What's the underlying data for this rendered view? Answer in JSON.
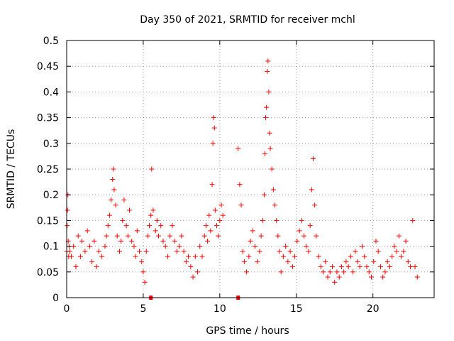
{
  "chart_data": {
    "type": "scatter",
    "title": "Day 350 of 2021, SRMTID for receiver mchl",
    "xlabel": "GPS time / hours",
    "ylabel": "SRMTID / TECUs",
    "xlim": [
      0,
      24
    ],
    "ylim": [
      0,
      0.5
    ],
    "xticks": [
      0,
      5,
      10,
      15,
      20
    ],
    "xtick_labels": [
      "0",
      "5",
      "10",
      "15",
      "20"
    ],
    "yticks": [
      0,
      0.05,
      0.1,
      0.15,
      0.2,
      0.25,
      0.3,
      0.35,
      0.4,
      0.45,
      0.5
    ],
    "ytick_labels": [
      "0",
      "0.05",
      "0.1",
      "0.15",
      "0.2",
      "0.25",
      "0.3",
      "0.35",
      "0.4",
      "0.45",
      "0.5"
    ],
    "grid": true,
    "marker": "+",
    "color": "#ff0000",
    "series": [
      {
        "name": "SRMTID",
        "x": [
          0.0,
          0.03,
          0.05,
          0.08,
          0.1,
          0.13,
          0.16,
          0.2,
          0.3,
          0.45,
          0.6,
          0.75,
          0.9,
          1.0,
          1.2,
          1.35,
          1.5,
          1.65,
          1.8,
          1.95,
          2.1,
          2.3,
          2.5,
          2.6,
          2.7,
          2.8,
          2.9,
          3.0,
          3.05,
          3.1,
          3.2,
          3.3,
          3.45,
          3.55,
          3.65,
          3.75,
          3.9,
          4.0,
          4.1,
          4.25,
          4.4,
          4.5,
          4.6,
          4.75,
          4.9,
          5.0,
          5.1,
          5.2,
          5.3,
          5.4,
          5.5,
          5.55,
          5.65,
          5.8,
          5.9,
          6.0,
          6.15,
          6.3,
          6.45,
          6.6,
          6.75,
          6.9,
          7.05,
          7.2,
          7.35,
          7.5,
          7.65,
          7.8,
          7.95,
          8.1,
          8.25,
          8.4,
          8.55,
          8.7,
          8.85,
          9.0,
          9.1,
          9.2,
          9.3,
          9.4,
          9.5,
          9.55,
          9.6,
          9.65,
          9.7,
          9.8,
          9.9,
          10.0,
          10.1,
          10.2,
          11.2,
          11.3,
          11.4,
          11.5,
          11.6,
          11.75,
          11.9,
          12.0,
          12.15,
          12.3,
          12.45,
          12.6,
          12.7,
          12.8,
          12.9,
          12.95,
          13.0,
          13.05,
          13.1,
          13.15,
          13.2,
          13.25,
          13.3,
          13.4,
          13.5,
          13.6,
          13.7,
          13.8,
          13.9,
          14.0,
          14.15,
          14.3,
          14.45,
          14.6,
          14.75,
          14.9,
          15.05,
          15.2,
          15.35,
          15.5,
          15.65,
          15.8,
          15.9,
          16.0,
          16.1,
          16.2,
          16.3,
          16.45,
          16.6,
          16.75,
          16.9,
          17.05,
          17.2,
          17.35,
          17.5,
          17.65,
          17.8,
          17.95,
          18.1,
          18.25,
          18.4,
          18.55,
          18.7,
          18.85,
          19.0,
          19.15,
          19.3,
          19.45,
          19.6,
          19.75,
          19.9,
          20.05,
          20.2,
          20.35,
          20.5,
          20.65,
          20.8,
          20.95,
          21.1,
          21.25,
          21.4,
          21.55,
          21.7,
          21.85,
          22.0,
          22.15,
          22.3,
          22.45,
          22.6,
          22.75,
          22.9
        ],
        "y": [
          0.09,
          0.14,
          0.17,
          0.2,
          0.11,
          0.08,
          0.1,
          0.09,
          0.08,
          0.1,
          0.06,
          0.12,
          0.08,
          0.11,
          0.09,
          0.13,
          0.1,
          0.07,
          0.11,
          0.06,
          0.09,
          0.08,
          0.1,
          0.12,
          0.14,
          0.16,
          0.19,
          0.23,
          0.25,
          0.21,
          0.18,
          0.12,
          0.09,
          0.11,
          0.15,
          0.19,
          0.14,
          0.12,
          0.17,
          0.11,
          0.1,
          0.08,
          0.13,
          0.09,
          0.07,
          0.05,
          0.03,
          0.09,
          0.12,
          0.14,
          0.16,
          0.25,
          0.17,
          0.13,
          0.15,
          0.12,
          0.14,
          0.11,
          0.1,
          0.08,
          0.12,
          0.14,
          0.11,
          0.09,
          0.1,
          0.12,
          0.09,
          0.07,
          0.08,
          0.06,
          0.04,
          0.08,
          0.05,
          0.1,
          0.08,
          0.12,
          0.14,
          0.11,
          0.16,
          0.13,
          0.22,
          0.3,
          0.35,
          0.33,
          0.17,
          0.14,
          0.12,
          0.15,
          0.18,
          0.16,
          0.29,
          0.22,
          0.18,
          0.09,
          0.07,
          0.05,
          0.08,
          0.11,
          0.13,
          0.1,
          0.07,
          0.09,
          0.12,
          0.15,
          0.2,
          0.28,
          0.35,
          0.37,
          0.44,
          0.46,
          0.4,
          0.32,
          0.29,
          0.25,
          0.21,
          0.18,
          0.15,
          0.12,
          0.09,
          0.05,
          0.08,
          0.1,
          0.07,
          0.09,
          0.06,
          0.08,
          0.11,
          0.13,
          0.15,
          0.12,
          0.1,
          0.09,
          0.14,
          0.21,
          0.27,
          0.18,
          0.12,
          0.08,
          0.06,
          0.05,
          0.07,
          0.04,
          0.05,
          0.06,
          0.03,
          0.05,
          0.04,
          0.06,
          0.05,
          0.07,
          0.06,
          0.08,
          0.05,
          0.09,
          0.07,
          0.06,
          0.1,
          0.08,
          0.06,
          0.05,
          0.04,
          0.07,
          0.11,
          0.09,
          0.06,
          0.04,
          0.05,
          0.07,
          0.06,
          0.08,
          0.1,
          0.09,
          0.12,
          0.08,
          0.09,
          0.11,
          0.07,
          0.06,
          0.15,
          0.06,
          0.04
        ]
      }
    ],
    "gap_markers_x": [
      5.5,
      11.2
    ]
  }
}
